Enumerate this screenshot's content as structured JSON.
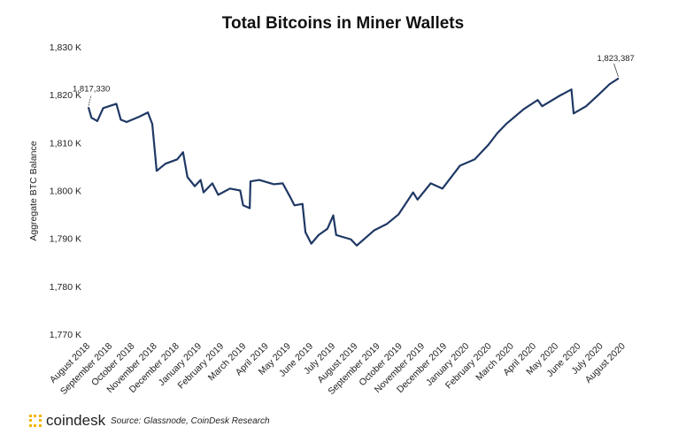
{
  "chart_data": {
    "type": "line",
    "title": "Total Bitcoins in Miner Wallets",
    "ylabel": "Aggregate BTC Balance",
    "xlabel": "",
    "ylim": [
      1770,
      1830
    ],
    "y_unit": "K BTC",
    "y_ticks": [
      "1,770 K",
      "1,780 K",
      "1,790 K",
      "1,800 K",
      "1,810 K",
      "1,820 K",
      "1,830 K"
    ],
    "y_tick_values": [
      1770,
      1780,
      1790,
      1800,
      1810,
      1820,
      1830
    ],
    "x_ticks": [
      "August 2018",
      "September 2018",
      "October 2018",
      "November 2018",
      "December 2018",
      "January 2019",
      "February 2019",
      "March 2019",
      "April 2019",
      "May 2019",
      "June 2019",
      "July 2019",
      "August 2019",
      "September 2019",
      "October 2019",
      "November 2019",
      "December 2019",
      "January 2020",
      "February 2020",
      "March 2020",
      "April 2020",
      "May 2020",
      "June 2020",
      "July 2020",
      "August 2020"
    ],
    "grid": false,
    "line_color": "#1f3864",
    "series": [
      {
        "x": [
          "2018-08-01",
          "2018-08-05",
          "2018-08-13",
          "2018-08-21",
          "2018-09-08",
          "2018-09-14",
          "2018-09-22",
          "2018-10-09",
          "2018-10-21",
          "2018-10-27",
          "2018-11-02",
          "2018-11-14",
          "2018-11-30",
          "2018-12-08",
          "2018-12-14",
          "2018-12-24",
          "2019-01-01",
          "2019-01-05",
          "2019-01-17",
          "2019-01-25",
          "2019-02-10",
          "2019-02-24",
          "2019-02-28",
          "2019-03-09",
          "2019-03-10",
          "2019-03-22",
          "2019-04-11",
          "2019-04-23",
          "2019-05-03",
          "2019-05-09",
          "2019-05-20",
          "2019-05-24",
          "2019-06-01",
          "2019-06-11",
          "2019-06-23",
          "2019-07-01",
          "2019-07-05",
          "2019-07-25",
          "2019-08-02",
          "2019-08-26",
          "2019-09-12",
          "2019-09-28",
          "2019-10-18",
          "2019-10-24",
          "2019-11-11",
          "2019-11-27",
          "2019-12-21",
          "2020-01-10",
          "2020-01-29",
          "2020-02-10",
          "2020-02-22",
          "2020-03-17",
          "2020-04-05",
          "2020-04-11",
          "2020-05-05",
          "2020-05-21",
          "2020-05-24",
          "2020-06-10",
          "2020-06-27",
          "2020-07-12",
          "2020-07-24"
        ],
        "y": [
          1817.33,
          1815.2,
          1814.5,
          1817.2,
          1818.1,
          1814.8,
          1814.3,
          1815.4,
          1816.3,
          1813.9,
          1804.1,
          1805.6,
          1806.5,
          1808.0,
          1802.8,
          1800.9,
          1802.2,
          1799.6,
          1801.5,
          1799.1,
          1800.4,
          1800.0,
          1796.9,
          1796.3,
          1801.9,
          1802.2,
          1801.3,
          1801.5,
          1798.7,
          1796.9,
          1797.2,
          1791.3,
          1788.9,
          1790.7,
          1792.0,
          1794.8,
          1790.7,
          1789.8,
          1788.5,
          1791.7,
          1793.0,
          1795.0,
          1799.6,
          1798.1,
          1801.5,
          1800.4,
          1805.2,
          1806.5,
          1809.6,
          1812.0,
          1813.9,
          1817.0,
          1818.9,
          1817.6,
          1819.8,
          1821.1,
          1816.1,
          1817.6,
          1820.0,
          1822.2,
          1823.387
        ]
      }
    ],
    "annotations": [
      {
        "text": "1,817,330",
        "point": "start"
      },
      {
        "text": "1,823,387",
        "point": "end"
      }
    ]
  },
  "footer": {
    "brand": "coindesk",
    "source": "Source: Glassnode, CoinDesk Research"
  }
}
